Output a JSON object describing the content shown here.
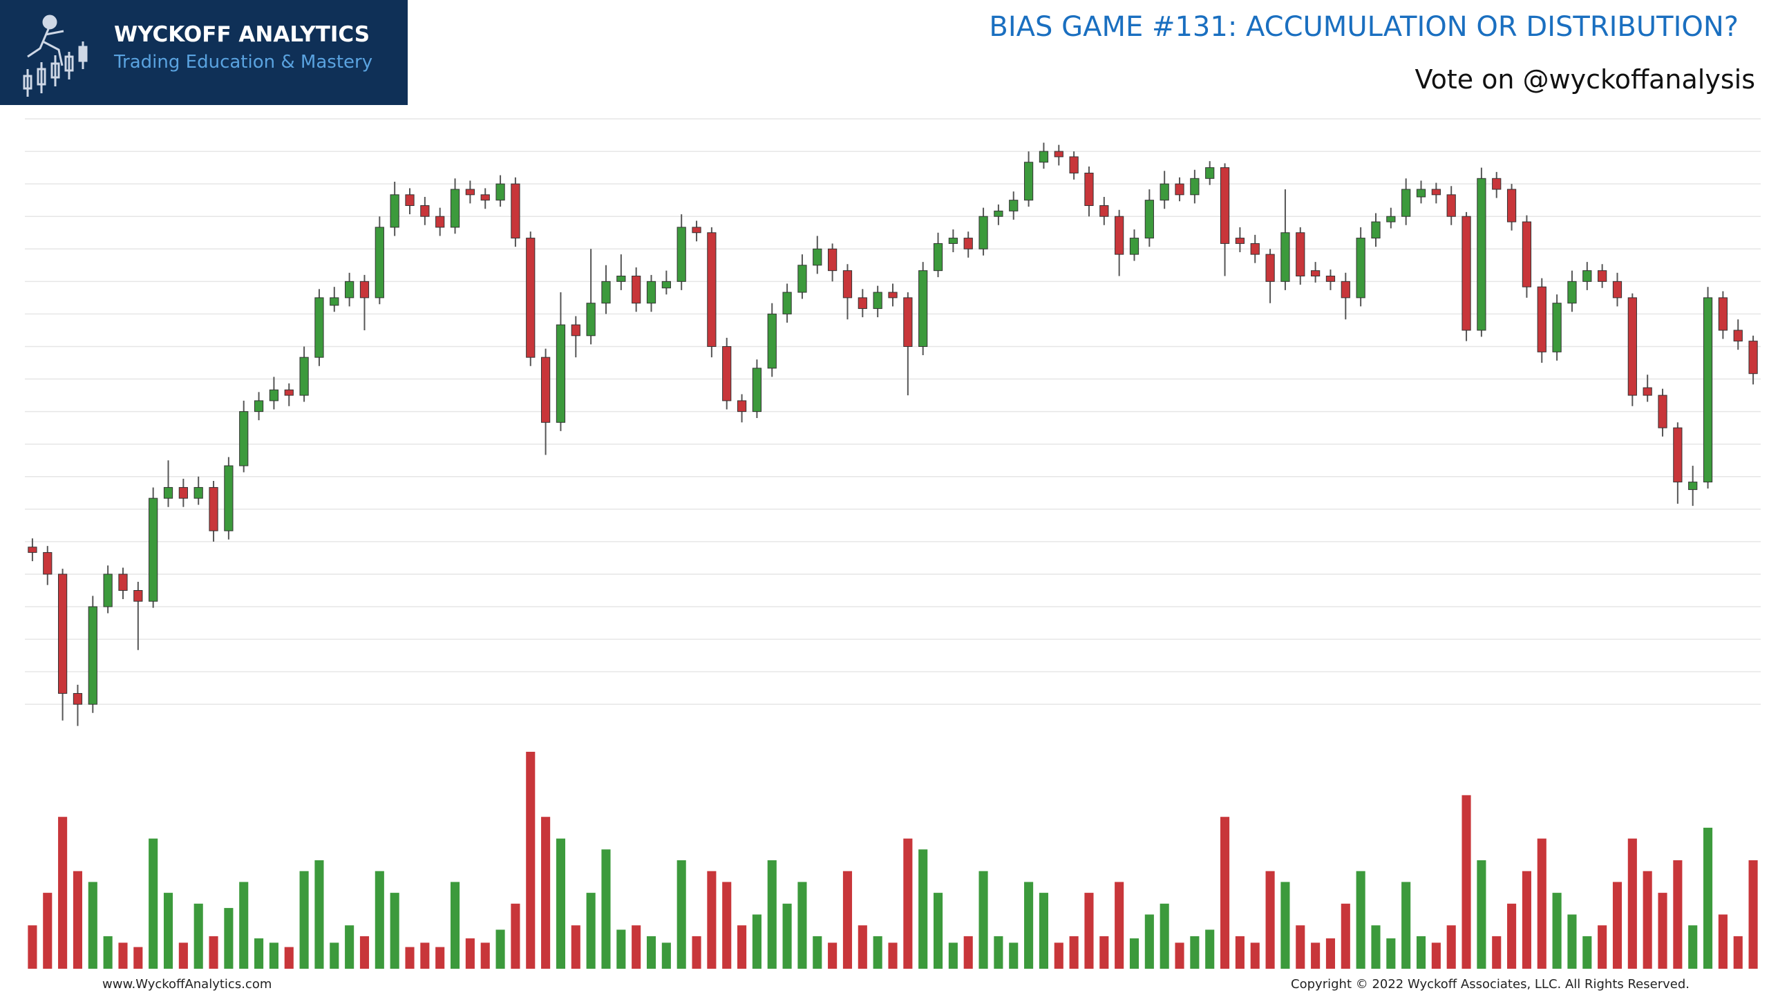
{
  "header": {
    "brand": "WYCKOFF ANALYTICS",
    "tagline": "Trading Education & Mastery"
  },
  "title": "BIAS GAME #131: ACCUMULATION OR DISTRIBUTION?",
  "subtitle": "Vote on @wyckoffanalysis",
  "footer": {
    "left": "www.WyckoffAnalytics.com",
    "right": "Copyright © 2022 Wyckoff Associates, LLC. All Rights Reserved."
  },
  "chart_data": {
    "type": "candlestick",
    "up_color": "#3c9a3c",
    "down_color": "#c8363a",
    "wick_color": "#555555",
    "grid": true,
    "ylim": [
      20,
      600
    ],
    "yticks": [
      60,
      90,
      120,
      150,
      180,
      210,
      240,
      270,
      300,
      330,
      360,
      390,
      420,
      450,
      480,
      510,
      540,
      570,
      600
    ],
    "volume_ylim": [
      0,
      100
    ],
    "open": [
      205,
      200,
      180,
      70,
      60,
      150,
      180,
      165,
      155,
      250,
      260,
      250,
      260,
      220,
      280,
      330,
      340,
      350,
      345,
      380,
      428,
      435,
      450,
      435,
      500,
      530,
      520,
      510,
      500,
      535,
      530,
      525,
      540,
      490,
      380,
      320,
      410,
      400,
      430,
      450,
      455,
      430,
      444,
      450,
      500,
      495,
      390,
      340,
      330,
      370,
      420,
      440,
      465,
      480,
      460,
      435,
      425,
      440,
      435,
      390,
      460,
      485,
      490,
      480,
      510,
      515,
      525,
      560,
      570,
      565,
      550,
      520,
      510,
      475,
      490,
      525,
      540,
      530,
      545,
      555,
      490,
      485,
      475,
      450,
      495,
      460,
      455,
      450,
      435,
      490,
      505,
      510,
      528,
      535,
      530,
      510,
      405,
      545,
      535,
      505,
      445,
      385,
      430,
      450,
      460,
      450,
      435,
      352,
      345,
      315,
      258,
      265,
      435,
      405,
      395
    ],
    "high": [
      213,
      206,
      185,
      78,
      160,
      188,
      186,
      173,
      260,
      285,
      268,
      270,
      266,
      288,
      340,
      348,
      362,
      356,
      390,
      443,
      445,
      458,
      456,
      510,
      542,
      536,
      528,
      518,
      545,
      543,
      536,
      548,
      546,
      496,
      388,
      440,
      418,
      480,
      465,
      475,
      463,
      456,
      460,
      512,
      506,
      500,
      398,
      346,
      378,
      430,
      448,
      475,
      492,
      485,
      466,
      443,
      446,
      448,
      440,
      468,
      495,
      498,
      496,
      518,
      521,
      533,
      570,
      578,
      576,
      570,
      556,
      528,
      516,
      498,
      535,
      552,
      546,
      553,
      561,
      559,
      500,
      493,
      480,
      535,
      500,
      468,
      461,
      458,
      500,
      513,
      518,
      545,
      543,
      541,
      538,
      514,
      555,
      551,
      540,
      511,
      453,
      438,
      460,
      468,
      466,
      458,
      439,
      364,
      351,
      320,
      280,
      445,
      441,
      415,
      400
    ],
    "low": [
      192,
      170,
      45,
      40,
      52,
      144,
      157,
      110,
      149,
      242,
      242,
      244,
      210,
      212,
      274,
      322,
      332,
      335,
      339,
      372,
      422,
      427,
      405,
      429,
      492,
      512,
      502,
      492,
      494,
      522,
      517,
      519,
      482,
      372,
      290,
      312,
      380,
      392,
      420,
      442,
      422,
      422,
      438,
      442,
      487,
      380,
      332,
      320,
      324,
      362,
      412,
      434,
      457,
      450,
      415,
      417,
      417,
      427,
      345,
      382,
      454,
      477,
      472,
      474,
      502,
      507,
      519,
      554,
      557,
      544,
      510,
      502,
      455,
      469,
      482,
      517,
      524,
      522,
      539,
      455,
      477,
      467,
      430,
      442,
      447,
      449,
      442,
      415,
      427,
      482,
      499,
      502,
      522,
      522,
      502,
      395,
      399,
      527,
      497,
      435,
      375,
      377,
      422,
      442,
      444,
      427,
      335,
      339,
      307,
      245,
      243,
      259,
      397,
      387,
      355
    ],
    "close": [
      200,
      180,
      70,
      60,
      150,
      180,
      165,
      155,
      250,
      260,
      250,
      260,
      220,
      280,
      330,
      340,
      350,
      345,
      380,
      435,
      435,
      450,
      435,
      500,
      530,
      520,
      510,
      500,
      535,
      530,
      525,
      540,
      490,
      380,
      320,
      410,
      400,
      430,
      450,
      455,
      430,
      450,
      450,
      500,
      495,
      390,
      340,
      330,
      370,
      420,
      440,
      465,
      480,
      460,
      435,
      425,
      440,
      435,
      390,
      460,
      485,
      490,
      480,
      510,
      515,
      525,
      560,
      570,
      565,
      550,
      520,
      510,
      475,
      490,
      525,
      540,
      530,
      545,
      555,
      485,
      485,
      475,
      450,
      495,
      455,
      455,
      450,
      435,
      490,
      505,
      510,
      535,
      535,
      530,
      510,
      405,
      545,
      535,
      505,
      445,
      385,
      430,
      450,
      460,
      450,
      435,
      345,
      345,
      315,
      265,
      265,
      435,
      405,
      395,
      365
    ],
    "volume": [
      20,
      35,
      70,
      45,
      40,
      15,
      12,
      10,
      60,
      35,
      12,
      30,
      15,
      28,
      40,
      14,
      12,
      10,
      45,
      50,
      12,
      20,
      15,
      45,
      35,
      10,
      12,
      10,
      40,
      14,
      12,
      18,
      30,
      100,
      70,
      60,
      20,
      35,
      55,
      18,
      20,
      15,
      12,
      50,
      15,
      45,
      40,
      20,
      25,
      50,
      30,
      40,
      15,
      12,
      45,
      20,
      15,
      12,
      60,
      55,
      35,
      12,
      15,
      45,
      15,
      12,
      40,
      35,
      12,
      15,
      35,
      15,
      40,
      14,
      25,
      30,
      12,
      15,
      18,
      70,
      15,
      12,
      45,
      40,
      20,
      12,
      14,
      30,
      45,
      20,
      14,
      40,
      15,
      12,
      20,
      80,
      50,
      15,
      30,
      45,
      60,
      35,
      25,
      15,
      20,
      40,
      60,
      45,
      35,
      50,
      20,
      65,
      25,
      15,
      50
    ]
  }
}
